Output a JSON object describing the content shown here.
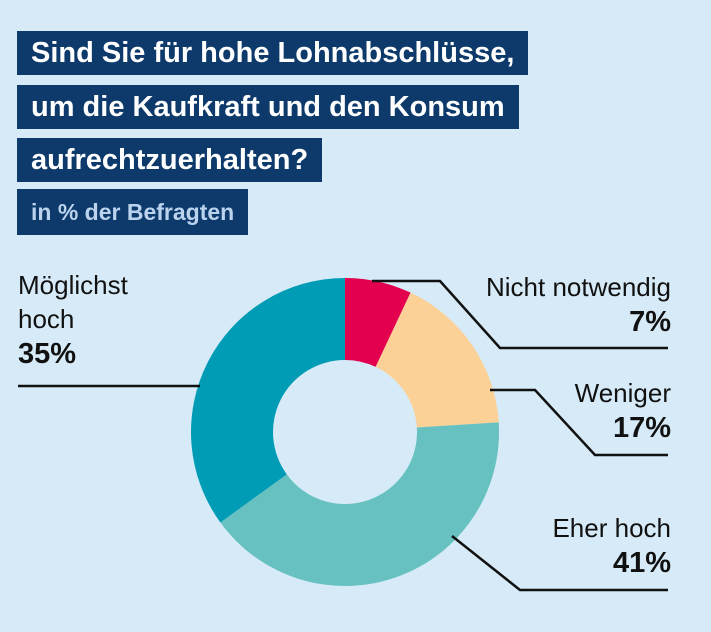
{
  "title_lines": [
    "Sind Sie für hohe Lohnabschlüsse,",
    "um die Kaufkraft und den Konsum",
    "aufrechtzuerhalten?"
  ],
  "subtitle": "in % der Befragten",
  "chart_data": {
    "type": "donut",
    "title": "Sind Sie für hohe Lohnabschlüsse, um die Kaufkraft und den Konsum aufrechtzuerhalten?",
    "subtitle": "in % der Befragten",
    "unit": "%",
    "slices": [
      {
        "label": "Nicht notwendig",
        "label_lines": [
          "Nicht notwendig"
        ],
        "value": 7,
        "value_text": "7%",
        "color": "#e3004f"
      },
      {
        "label": "Weniger",
        "label_lines": [
          "Weniger"
        ],
        "value": 17,
        "value_text": "17%",
        "color": "#fcd197"
      },
      {
        "label": "Eher hoch",
        "label_lines": [
          "Eher hoch"
        ],
        "value": 41,
        "value_text": "41%",
        "color": "#67c1c1"
      },
      {
        "label": "Möglichst hoch",
        "label_lines": [
          "Möglichst",
          "hoch"
        ],
        "value": 35,
        "value_text": "35%",
        "color": "#009bb5"
      }
    ]
  }
}
